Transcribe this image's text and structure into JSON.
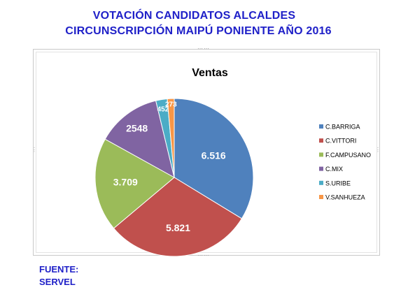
{
  "header": {
    "line1": "VOTACIÓN CANDIDATOS ALCALDES",
    "line2": "CIRCUNSCRIPCIÓN  MAIPÚ PONIENTE  AÑO 2016"
  },
  "footer": {
    "line1": "FUENTE:",
    "line2": "SERVEL"
  },
  "chart_data": {
    "type": "pie",
    "title": "Ventas",
    "start_angle_deg": 0,
    "direction": "clockwise",
    "legend_position": "right",
    "categories": [
      "C.BARRIGA",
      "C.VITTORI",
      "F.CAMPUSANO",
      "C.MIX",
      "S.URIBE",
      "V.SANHUEZA"
    ],
    "values": [
      6516,
      5821,
      3709,
      2548,
      452,
      273
    ],
    "labels": [
      "6.516",
      "5.821",
      "3.709",
      "2548",
      "452",
      "273"
    ],
    "colors": [
      "#4f81bd",
      "#c0504d",
      "#9bbb59",
      "#8064a2",
      "#4bacc6",
      "#f79646"
    ]
  }
}
